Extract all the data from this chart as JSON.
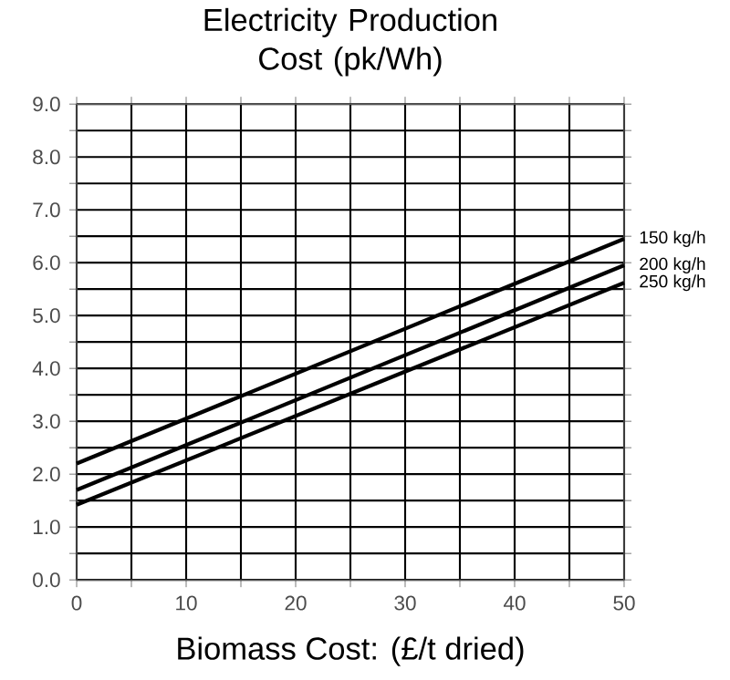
{
  "chart_data": {
    "type": "line",
    "title": "Electricity Production Cost (pk/Wh)",
    "xlabel": "Biomass Cost: (£/t dried)",
    "x": [
      0,
      50
    ],
    "series": [
      {
        "name": "150 kg/h",
        "color": "#000000",
        "values": [
          2.2,
          6.45
        ]
      },
      {
        "name": "200 kg/h",
        "color": "#000000",
        "values": [
          1.7,
          5.95
        ]
      },
      {
        "name": "250 kg/h",
        "color": "#000000",
        "values": [
          1.42,
          5.62
        ]
      }
    ],
    "xlim": [
      0,
      50
    ],
    "ylim": [
      0,
      9
    ],
    "xticks": [
      0,
      {
        "value": 5,
        "label": null
      },
      10,
      {
        "value": 15,
        "label": null
      },
      20,
      {
        "value": 25,
        "label": null
      },
      30,
      {
        "value": 35,
        "label": null
      },
      40,
      {
        "value": 45,
        "label": null
      },
      50
    ],
    "yticks": [
      {
        "value": 0,
        "label": "0.0"
      },
      {
        "value": 0.5,
        "label": null
      },
      {
        "value": 1,
        "label": "1.0"
      },
      {
        "value": 1.5,
        "label": null
      },
      {
        "value": 2,
        "label": "2.0"
      },
      {
        "value": 2.5,
        "label": null
      },
      {
        "value": 3,
        "label": "3.0"
      },
      {
        "value": 3.5,
        "label": null
      },
      {
        "value": 4,
        "label": "4.0"
      },
      {
        "value": 4.5,
        "label": null
      },
      {
        "value": 5,
        "label": "5.0"
      },
      {
        "value": 5.5,
        "label": null
      },
      {
        "value": 6,
        "label": "6.0"
      },
      {
        "value": 6.5,
        "label": null
      },
      {
        "value": 7,
        "label": "7.0"
      },
      {
        "value": 7.5,
        "label": null
      },
      {
        "value": 8,
        "label": "8.0"
      },
      {
        "value": 8.5,
        "label": null
      },
      {
        "value": 9,
        "label": "9.0"
      }
    ],
    "grid": true,
    "legend": "right",
    "marker": "none",
    "line_style": "solid"
  }
}
